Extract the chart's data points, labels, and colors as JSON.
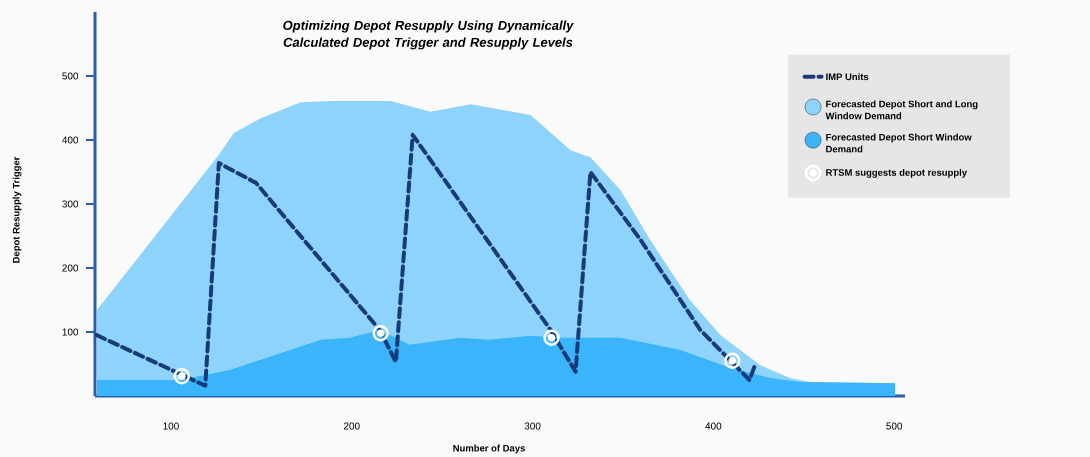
{
  "chart_data": {
    "type": "area",
    "title": "Optimizing Depot Resupply Using Dynamically Calculated Depot Trigger and Resupply Levels",
    "xlabel": "Number of Days",
    "ylabel": "Depot Resupply Trigger",
    "xlim": [
      58,
      506
    ],
    "ylim": [
      0,
      600
    ],
    "xticks": [
      100,
      200,
      300,
      400,
      500
    ],
    "yticks": [
      100,
      200,
      300,
      400,
      500
    ],
    "legend": "right",
    "series": [
      {
        "name": "IMP Units",
        "type": "line",
        "line_style": "dashed",
        "color": "#183a7a",
        "x": [
          59,
          119,
          126.5,
          147,
          183,
          215.5,
          224.4,
          233.7,
          265,
          310,
          323.8,
          332,
          359.7,
          392.8,
          420,
          423
        ],
        "values": [
          95,
          16,
          364,
          333,
          212,
          103,
          53,
          408,
          283,
          103,
          38,
          350,
          244,
          103,
          25,
          48
        ]
      },
      {
        "name": "Forecasted Depot Short and Long Window Demand",
        "color": "#8ed3fb",
        "x": [
          59,
          126.5,
          134.8,
          149.7,
          171.8,
          188,
          221.5,
          243.6,
          265.7,
          298.9,
          321,
          332,
          348.6,
          365,
          387,
          404,
          426,
          442.5,
          453.6,
          500.5
        ],
        "values": [
          134,
          377,
          411,
          434,
          459,
          461,
          461,
          444,
          456,
          439,
          384,
          373,
          322,
          244,
          150,
          95,
          48,
          28,
          22,
          20
        ]
      },
      {
        "name": "Forecasted Depot Short Window Demand",
        "color": "#3ab4fb",
        "x": [
          59,
          105.5,
          133,
          183,
          199,
          215.5,
          232,
          260,
          276,
          299,
          315.5,
          348.6,
          381.8,
          409,
          431.5,
          448,
          500.5
        ],
        "values": [
          25,
          25,
          41,
          88,
          91,
          103,
          80,
          91,
          88,
          94,
          91,
          91,
          72,
          44,
          28,
          22,
          20
        ]
      },
      {
        "name": "RTSM suggests depot resupply",
        "type": "scatter",
        "marker": "circle",
        "color": "#ffffff",
        "x": [
          106,
          216,
          310.5,
          410.5
        ],
        "values": [
          31,
          98,
          91,
          55
        ]
      }
    ]
  }
}
